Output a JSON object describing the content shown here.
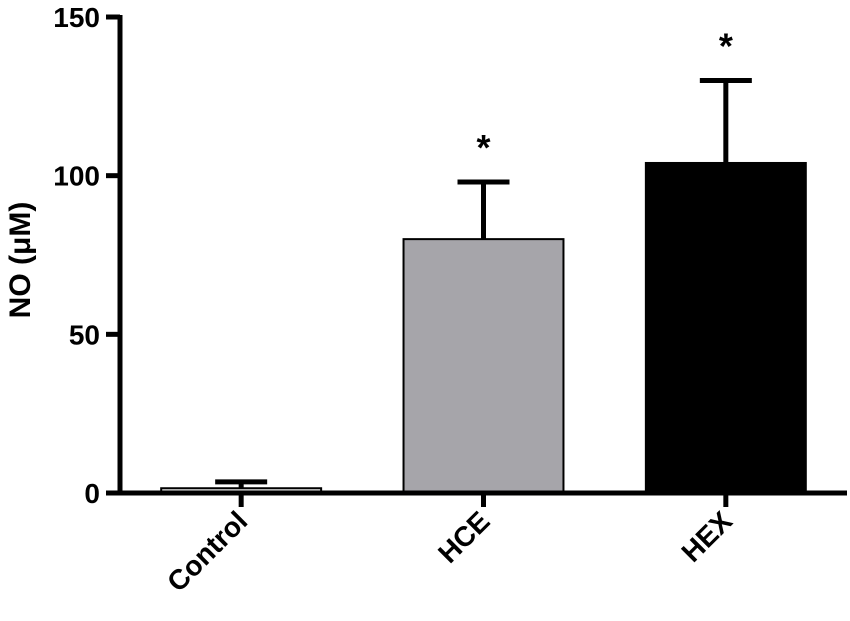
{
  "chart_data": {
    "type": "bar",
    "title": "",
    "xlabel": "",
    "ylabel": "NO (μM)",
    "ylim": [
      0,
      150
    ],
    "yticks": [
      0,
      50,
      100,
      150
    ],
    "grid": false,
    "categories": [
      "Control",
      "HCE",
      "HEX"
    ],
    "values": [
      1.5,
      80,
      104
    ],
    "errors": [
      2,
      18,
      26
    ],
    "bar_colors": [
      "#e8e8e8",
      "#a6a5aa",
      "#000000"
    ],
    "annotations": [
      "",
      "*",
      "*"
    ]
  }
}
